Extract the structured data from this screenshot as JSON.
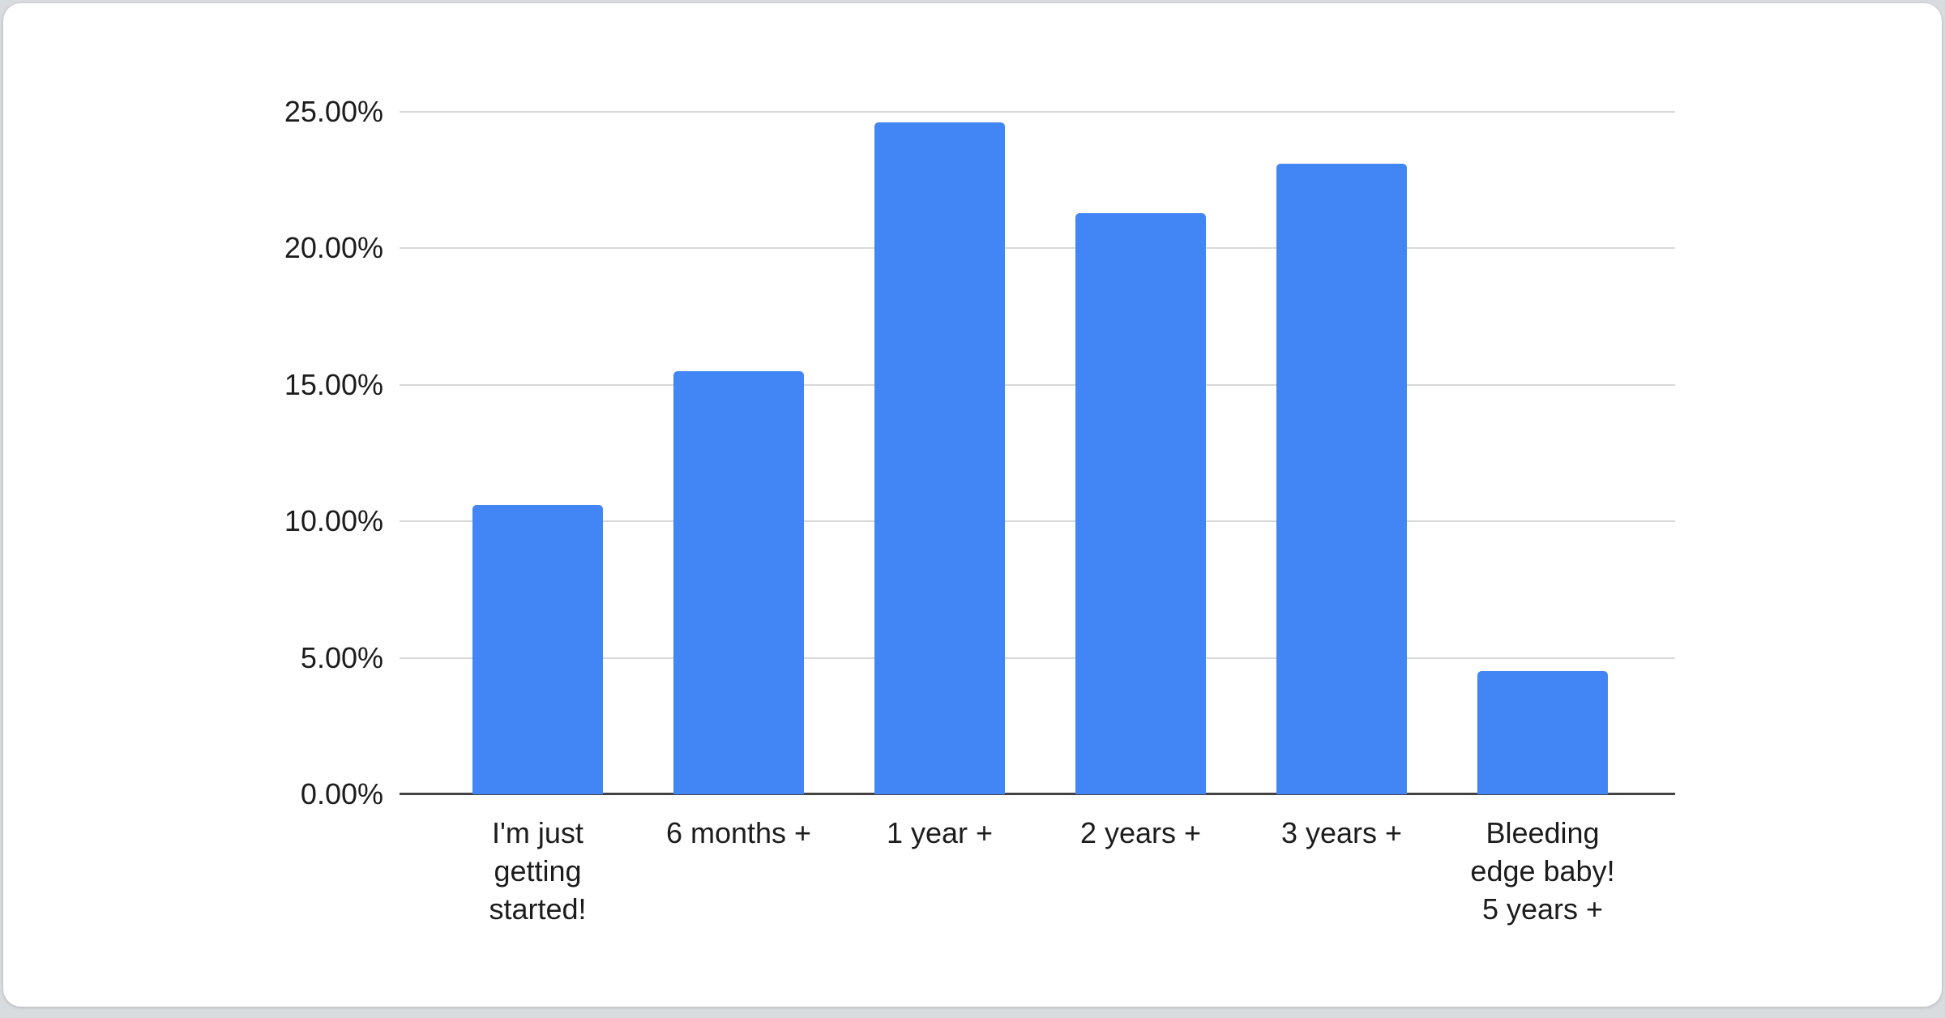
{
  "chart_data": {
    "type": "bar",
    "title": "",
    "xlabel": "",
    "ylabel": "",
    "categories": [
      "I'm just getting started!",
      "6 months +",
      "1 year +",
      "2 years +",
      "3 years +",
      "Bleeding edge baby! 5 years +"
    ],
    "category_lines": [
      [
        "I'm just",
        "getting",
        "started!"
      ],
      [
        "6 months +"
      ],
      [
        "1 year +"
      ],
      [
        "2 years +"
      ],
      [
        "3 years +"
      ],
      [
        "Bleeding",
        "edge baby!",
        "5 years +"
      ]
    ],
    "values": [
      10.6,
      15.5,
      24.6,
      21.3,
      23.1,
      4.5
    ],
    "value_format": "percent",
    "ylim": [
      0,
      25
    ],
    "y_ticks": [
      {
        "label": "0.00%",
        "value": 0
      },
      {
        "label": "5.00%",
        "value": 5
      },
      {
        "label": "10.00%",
        "value": 10
      },
      {
        "label": "15.00%",
        "value": 15
      },
      {
        "label": "20.00%",
        "value": 20
      },
      {
        "label": "25.00%",
        "value": 25
      }
    ],
    "grid": "on",
    "legend": "none",
    "colors": {
      "bar": "#4285f4",
      "gridline": "#d9d9d9",
      "axis_line": "#424242",
      "label_text": "#1c1c1c",
      "card_background": "#ffffff",
      "page_background": "#d9dcdf"
    }
  }
}
